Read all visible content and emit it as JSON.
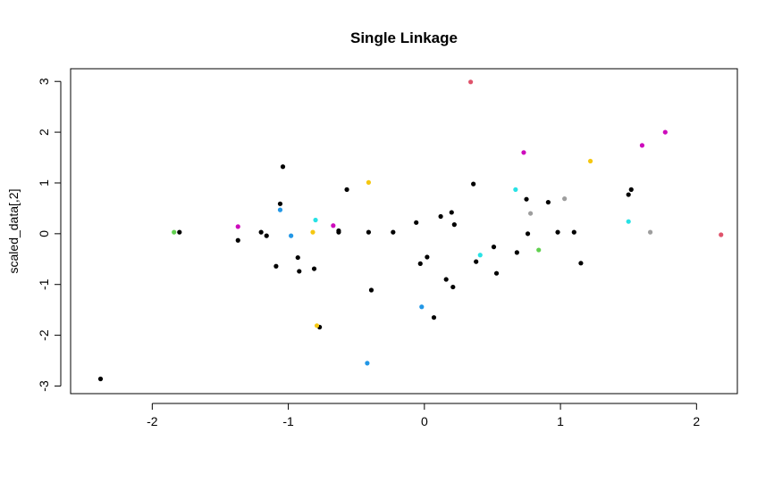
{
  "chart_data": {
    "type": "scatter",
    "title": "Single Linkage",
    "xlabel": "",
    "ylabel": "scaled_data[,2]",
    "xlim": [
      -2.6,
      2.3
    ],
    "ylim": [
      -3.15,
      3.25
    ],
    "x_ticks": [
      -2,
      -1,
      0,
      1,
      2
    ],
    "x_tick_labels": [
      "-2",
      "-1",
      "0",
      "1",
      "2"
    ],
    "y_ticks": [
      -3,
      -2,
      -1,
      0,
      1,
      2,
      3
    ],
    "y_tick_labels": [
      "-3",
      "-2",
      "-1",
      "0",
      "1",
      "2",
      "3"
    ],
    "grid": false,
    "legend": "none",
    "cluster_colors": {
      "1": "#000000",
      "2": "#DF536B",
      "3": "#61D04F",
      "4": "#2297E6",
      "5": "#28E2E5",
      "6": "#CD0BBC",
      "7": "#F5C710",
      "8": "#9E9E9E"
    },
    "points": [
      {
        "x": -2.38,
        "y": -2.86,
        "cluster": 1
      },
      {
        "x": -1.8,
        "y": 0.03,
        "cluster": 1
      },
      {
        "x": -1.37,
        "y": -0.13,
        "cluster": 1
      },
      {
        "x": -1.2,
        "y": 0.03,
        "cluster": 1
      },
      {
        "x": -1.16,
        "y": -0.04,
        "cluster": 1
      },
      {
        "x": -1.09,
        "y": -0.64,
        "cluster": 1
      },
      {
        "x": -1.06,
        "y": 0.59,
        "cluster": 1
      },
      {
        "x": -1.04,
        "y": 1.32,
        "cluster": 1
      },
      {
        "x": -0.93,
        "y": -0.47,
        "cluster": 1
      },
      {
        "x": -0.92,
        "y": -0.74,
        "cluster": 1
      },
      {
        "x": -0.81,
        "y": -0.69,
        "cluster": 1
      },
      {
        "x": -0.77,
        "y": -1.84,
        "cluster": 1
      },
      {
        "x": -0.63,
        "y": 0.03,
        "cluster": 1
      },
      {
        "x": -0.63,
        "y": 0.06,
        "cluster": 1
      },
      {
        "x": -0.57,
        "y": 0.87,
        "cluster": 1
      },
      {
        "x": -0.41,
        "y": 0.03,
        "cluster": 1
      },
      {
        "x": -0.39,
        "y": -1.11,
        "cluster": 1
      },
      {
        "x": -0.23,
        "y": 0.03,
        "cluster": 1
      },
      {
        "x": -0.06,
        "y": 0.22,
        "cluster": 1
      },
      {
        "x": -0.03,
        "y": -0.59,
        "cluster": 1
      },
      {
        "x": 0.02,
        "y": -0.46,
        "cluster": 1
      },
      {
        "x": 0.07,
        "y": -1.65,
        "cluster": 1
      },
      {
        "x": 0.12,
        "y": 0.34,
        "cluster": 1
      },
      {
        "x": 0.16,
        "y": -0.9,
        "cluster": 1
      },
      {
        "x": 0.2,
        "y": 0.42,
        "cluster": 1
      },
      {
        "x": 0.21,
        "y": -1.05,
        "cluster": 1
      },
      {
        "x": 0.22,
        "y": 0.18,
        "cluster": 1
      },
      {
        "x": 0.36,
        "y": 0.98,
        "cluster": 1
      },
      {
        "x": 0.38,
        "y": -0.55,
        "cluster": 1
      },
      {
        "x": 0.51,
        "y": -0.26,
        "cluster": 1
      },
      {
        "x": 0.53,
        "y": -0.78,
        "cluster": 1
      },
      {
        "x": 0.68,
        "y": -0.37,
        "cluster": 1
      },
      {
        "x": 0.75,
        "y": 0.68,
        "cluster": 1
      },
      {
        "x": 0.76,
        "y": 0.0,
        "cluster": 1
      },
      {
        "x": 0.91,
        "y": 0.62,
        "cluster": 1
      },
      {
        "x": 0.98,
        "y": 0.03,
        "cluster": 1
      },
      {
        "x": 1.1,
        "y": 0.03,
        "cluster": 1
      },
      {
        "x": 1.15,
        "y": -0.58,
        "cluster": 1
      },
      {
        "x": 1.5,
        "y": 0.77,
        "cluster": 1
      },
      {
        "x": 1.52,
        "y": 0.87,
        "cluster": 1
      },
      {
        "x": 0.34,
        "y": 2.99,
        "cluster": 2
      },
      {
        "x": 2.18,
        "y": -0.02,
        "cluster": 2
      },
      {
        "x": -1.84,
        "y": 0.03,
        "cluster": 3
      },
      {
        "x": 0.84,
        "y": -0.32,
        "cluster": 3
      },
      {
        "x": -1.06,
        "y": 0.47,
        "cluster": 4
      },
      {
        "x": -0.98,
        "y": -0.04,
        "cluster": 4
      },
      {
        "x": -0.42,
        "y": -2.55,
        "cluster": 4
      },
      {
        "x": -0.02,
        "y": -1.44,
        "cluster": 4
      },
      {
        "x": -0.8,
        "y": 0.27,
        "cluster": 5
      },
      {
        "x": 0.41,
        "y": -0.42,
        "cluster": 5
      },
      {
        "x": 0.67,
        "y": 0.87,
        "cluster": 5
      },
      {
        "x": 1.5,
        "y": 0.24,
        "cluster": 5
      },
      {
        "x": -1.37,
        "y": 0.14,
        "cluster": 6
      },
      {
        "x": -0.67,
        "y": 0.16,
        "cluster": 6
      },
      {
        "x": 0.73,
        "y": 1.6,
        "cluster": 6
      },
      {
        "x": 1.6,
        "y": 1.74,
        "cluster": 6
      },
      {
        "x": 1.77,
        "y": 2.0,
        "cluster": 6
      },
      {
        "x": -0.82,
        "y": 0.03,
        "cluster": 7
      },
      {
        "x": -0.79,
        "y": -1.81,
        "cluster": 7
      },
      {
        "x": -0.41,
        "y": 1.01,
        "cluster": 7
      },
      {
        "x": 1.22,
        "y": 1.43,
        "cluster": 7
      },
      {
        "x": 0.78,
        "y": 0.4,
        "cluster": 8
      },
      {
        "x": 1.03,
        "y": 0.69,
        "cluster": 8
      },
      {
        "x": 1.66,
        "y": 0.03,
        "cluster": 8
      }
    ]
  }
}
